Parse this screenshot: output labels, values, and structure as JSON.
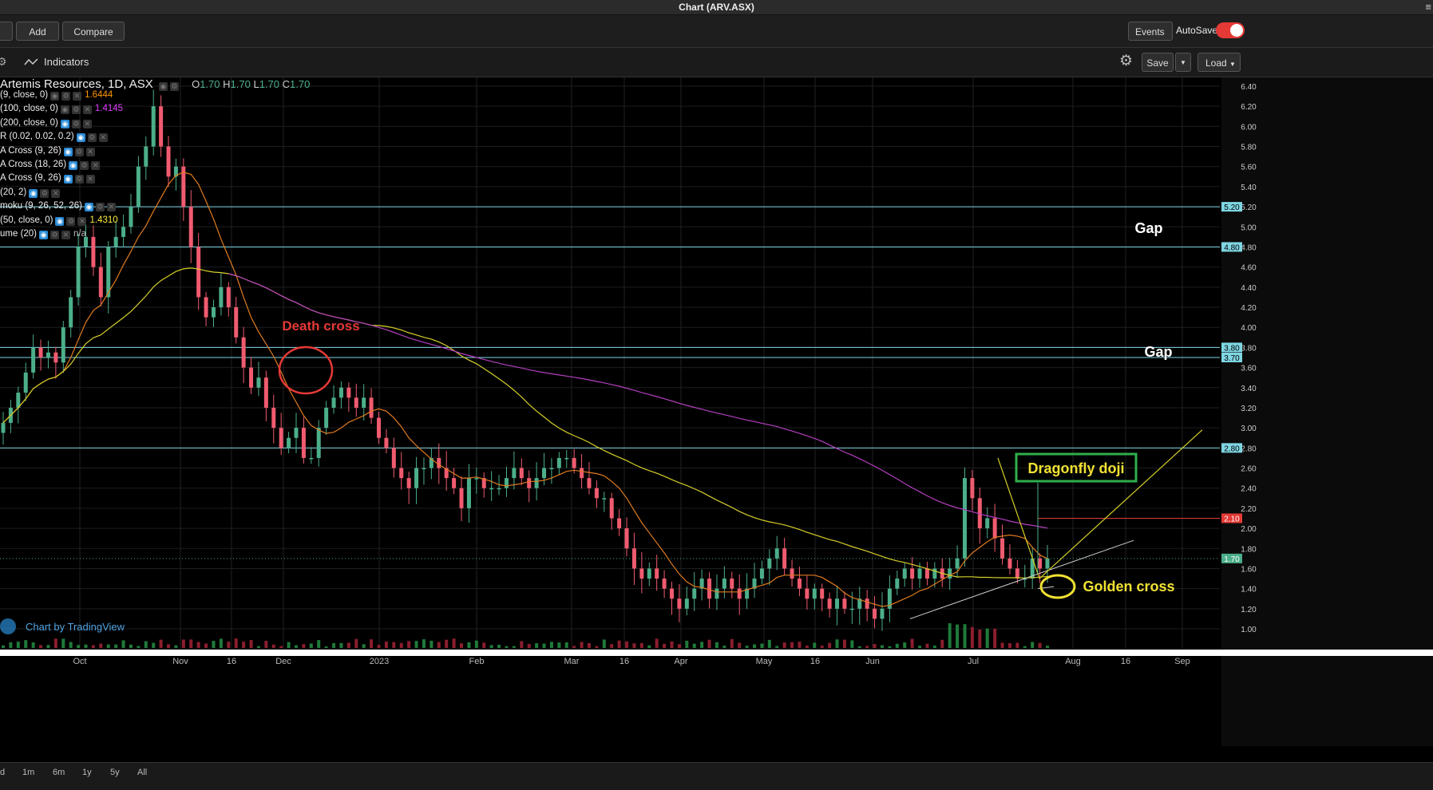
{
  "window": {
    "title": "Chart (ARV.ASX)"
  },
  "toolbar": {
    "add_label": "Add",
    "compare_label": "Compare",
    "events_label": "Events",
    "autosave_label": "AutoSave",
    "autosave_on": true,
    "indicators_label": "Indicators",
    "save_label": "Save",
    "load_label": "Load"
  },
  "legend": {
    "symbol": "Artemis Resources, 1D, ASX",
    "ohlc": {
      "o_label": "O",
      "o": "1.70",
      "h_label": "H",
      "h": "1.70",
      "l_label": "L",
      "l": "1.70",
      "c_label": "C",
      "c": "1.70"
    },
    "indicators": [
      {
        "label": "(9, close, 0)",
        "value": "1.6444",
        "color": "#ff9800"
      },
      {
        "label": "(100, close, 0)",
        "value": "1.4145",
        "color": "#e040fb"
      },
      {
        "label": "(200, close, 0)",
        "value": "",
        "color": ""
      },
      {
        "label": "R (0.02, 0.02, 0.2)",
        "value": "",
        "color": ""
      },
      {
        "label": "A Cross (9, 26)",
        "value": "",
        "color": ""
      },
      {
        "label": "A Cross (18, 26)",
        "value": "",
        "color": ""
      },
      {
        "label": "A Cross (9, 26)",
        "value": "",
        "color": ""
      },
      {
        "label": "(20, 2)",
        "value": "",
        "color": ""
      },
      {
        "label": "moku (9, 26, 52, 26)",
        "value": "",
        "color": ""
      },
      {
        "label": "(50, close, 0)",
        "value": "1.4310",
        "color": "#ffeb3b"
      },
      {
        "label": "ume (20)",
        "value": "n/a",
        "color": "#bbbbbb"
      }
    ]
  },
  "watermark": "Chart by TradingView",
  "annotations": {
    "death_cross": "Death cross",
    "golden_cross": "Golden cross",
    "dragonfly_doji": "Dragonfly doji",
    "gap1": "Gap",
    "gap2": "Gap"
  },
  "range_buttons": [
    "d",
    "1m",
    "6m",
    "1y",
    "5y",
    "All"
  ],
  "colors": {
    "up": "#4caf8a",
    "down": "#f05b70",
    "ma_orange": "#e07b1f",
    "ma_yellow": "#d6cf2a",
    "ma_magenta": "#b43fc0",
    "hline": "#7fd6e3",
    "red_line": "#e53935",
    "accent": "#2a8bd6"
  },
  "chart_data": {
    "type": "candlestick",
    "symbol": "ARV",
    "exchange": "ASX",
    "interval": "1D",
    "ylim": [
      0.9,
      6.5
    ],
    "y_ticks": [
      "6.40",
      "6.20",
      "6.00",
      "5.80",
      "5.60",
      "5.40",
      "5.20",
      "5.00",
      "4.80",
      "4.60",
      "4.40",
      "4.20",
      "4.00",
      "3.80",
      "3.60",
      "3.40",
      "3.20",
      "3.00",
      "2.80",
      "2.60",
      "2.40",
      "2.20",
      "2.00",
      "1.80",
      "1.60",
      "1.40",
      "1.20",
      "1.00"
    ],
    "x_ticks": [
      "Oct",
      "Nov",
      "16",
      "Dec",
      "2023",
      "Feb",
      "Mar",
      "16",
      "Apr",
      "May",
      "16",
      "Jun",
      "Jul",
      "Aug",
      "16",
      "Sep"
    ],
    "highlight_levels": [
      {
        "label": "5.20",
        "value": 5.2
      },
      {
        "label": "4.80",
        "value": 4.8
      },
      {
        "label": "3.80",
        "value": 3.8
      },
      {
        "label": "3.70",
        "value": 3.7
      },
      {
        "label": "2.80",
        "value": 2.8
      }
    ],
    "resistance_level": {
      "label": "2.10",
      "value": 2.1
    },
    "last_price": {
      "label": "1.70",
      "value": 1.7
    },
    "candles_close": [
      3.05,
      3.2,
      3.35,
      3.55,
      3.8,
      3.7,
      3.75,
      3.65,
      4.0,
      4.3,
      4.8,
      4.9,
      4.6,
      4.3,
      4.8,
      4.9,
      5.0,
      5.2,
      5.6,
      5.8,
      6.2,
      5.8,
      5.5,
      5.6,
      5.2,
      4.8,
      4.3,
      4.1,
      4.2,
      4.4,
      4.2,
      3.9,
      3.6,
      3.4,
      3.5,
      3.2,
      3.0,
      2.8,
      2.9,
      3.0,
      2.7,
      2.7,
      3.0,
      3.2,
      3.3,
      3.4,
      3.3,
      3.2,
      3.3,
      3.1,
      2.9,
      2.8,
      2.6,
      2.5,
      2.4,
      2.6,
      2.6,
      2.7,
      2.6,
      2.5,
      2.4,
      2.2,
      2.5,
      2.5,
      2.4,
      2.4,
      2.4,
      2.5,
      2.6,
      2.5,
      2.4,
      2.5,
      2.6,
      2.6,
      2.7,
      2.7,
      2.6,
      2.5,
      2.4,
      2.3,
      2.3,
      2.1,
      2.0,
      1.8,
      1.6,
      1.5,
      1.6,
      1.5,
      1.4,
      1.3,
      1.2,
      1.3,
      1.4,
      1.5,
      1.3,
      1.4,
      1.5,
      1.4,
      1.3,
      1.4,
      1.5,
      1.6,
      1.7,
      1.8,
      1.6,
      1.5,
      1.4,
      1.3,
      1.4,
      1.3,
      1.2,
      1.3,
      1.2,
      1.2,
      1.3,
      1.2,
      1.1,
      1.2,
      1.4,
      1.5,
      1.6,
      1.5,
      1.6,
      1.5,
      1.6,
      1.5,
      1.6,
      1.7,
      2.5,
      2.3,
      2.0,
      2.1,
      1.9,
      1.7,
      1.6,
      1.5,
      1.5,
      1.7,
      1.6,
      1.7
    ],
    "volume_note": "volume bars along bottom (values not labeled)"
  }
}
